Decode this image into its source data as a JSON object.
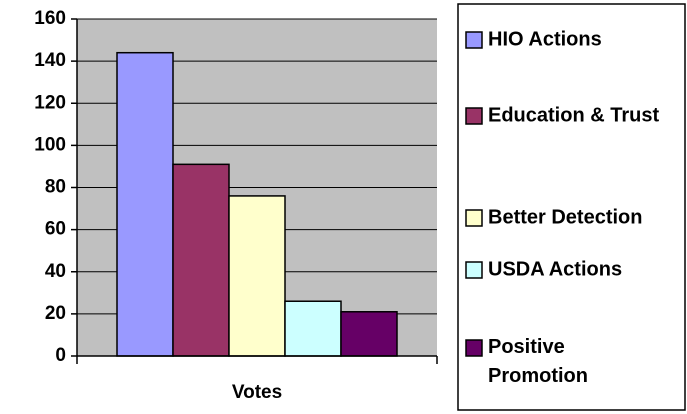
{
  "chart_data": {
    "type": "bar",
    "title": "",
    "xlabel": "Votes",
    "ylabel": "",
    "ylim": [
      0,
      160
    ],
    "yticks": [
      0,
      20,
      40,
      60,
      80,
      100,
      120,
      140,
      160
    ],
    "grid": true,
    "plot_background": "#c0c0c0",
    "legend_position": "right",
    "series": [
      {
        "name": "HIO Actions",
        "value": 144,
        "color": "#9999ff"
      },
      {
        "name": "Education & Trust",
        "value": 91,
        "color": "#993366"
      },
      {
        "name": "Better Detection",
        "value": 76,
        "color": "#ffffcc"
      },
      {
        "name": "USDA Actions",
        "value": 26,
        "color": "#ccffff"
      },
      {
        "name": "Positive Promotion",
        "value": 21,
        "color": "#660066"
      }
    ]
  }
}
